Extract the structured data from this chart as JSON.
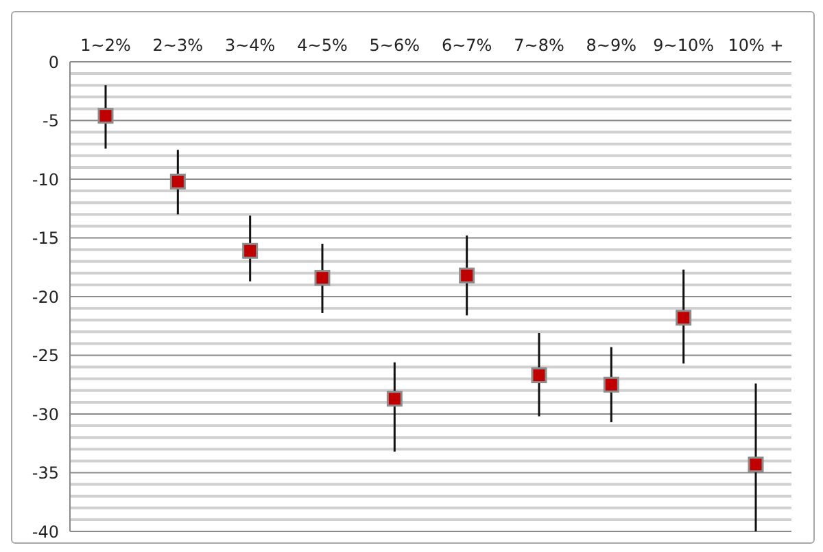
{
  "chart_data": {
    "type": "scatter",
    "categories": [
      "1~2%",
      "2~3%",
      "3~4%",
      "4~5%",
      "5~6%",
      "6~7%",
      "7~8%",
      "8~9%",
      "9~10%",
      "10% +"
    ],
    "series": [
      {
        "color": "#c00000",
        "values": [
          -4.6,
          -10.2,
          -16.1,
          -18.4,
          -28.7,
          -18.2,
          -26.7,
          -27.5,
          -21.8,
          -34.3
        ],
        "errors": [
          [
            -7.4,
            -2.0
          ],
          [
            -13.0,
            -7.5
          ],
          [
            -18.7,
            -13.1
          ],
          [
            -21.4,
            -15.5
          ],
          [
            -33.2,
            -25.6
          ],
          [
            -21.6,
            -14.8
          ],
          [
            -30.2,
            -23.1
          ],
          [
            -30.7,
            -24.3
          ],
          [
            -25.7,
            -17.7
          ],
          [
            -40,
            -27.4
          ]
        ]
      }
    ],
    "ylim": [
      -40,
      0
    ],
    "yticks": [
      0,
      {
        "value": -1,
        "label": null
      },
      {
        "value": -2,
        "label": null
      },
      {
        "value": -3,
        "label": null
      },
      {
        "value": -4,
        "label": null
      },
      -5,
      {
        "value": -6,
        "label": null
      },
      {
        "value": -7,
        "label": null
      },
      {
        "value": -8,
        "label": null
      },
      {
        "value": -9,
        "label": null
      },
      -10,
      {
        "value": -11,
        "label": null
      },
      {
        "value": -12,
        "label": null
      },
      {
        "value": -13,
        "label": null
      },
      {
        "value": -14,
        "label": null
      },
      -15,
      {
        "value": -16,
        "label": null
      },
      {
        "value": -17,
        "label": null
      },
      {
        "value": -18,
        "label": null
      },
      {
        "value": -19,
        "label": null
      },
      -20,
      {
        "value": -21,
        "label": null
      },
      {
        "value": -22,
        "label": null
      },
      {
        "value": -23,
        "label": null
      },
      {
        "value": -24,
        "label": null
      },
      -25,
      {
        "value": -26,
        "label": null
      },
      {
        "value": -27,
        "label": null
      },
      {
        "value": -28,
        "label": null
      },
      {
        "value": -29,
        "label": null
      },
      -30,
      {
        "value": -31,
        "label": null
      },
      {
        "value": -32,
        "label": null
      },
      {
        "value": -33,
        "label": null
      },
      {
        "value": -34,
        "label": null
      },
      -35,
      {
        "value": -36,
        "label": null
      },
      {
        "value": -37,
        "label": null
      },
      {
        "value": -38,
        "label": null
      },
      {
        "value": -39,
        "label": null
      },
      -40
    ],
    "grid": "y",
    "legend": false,
    "marker": "square"
  }
}
